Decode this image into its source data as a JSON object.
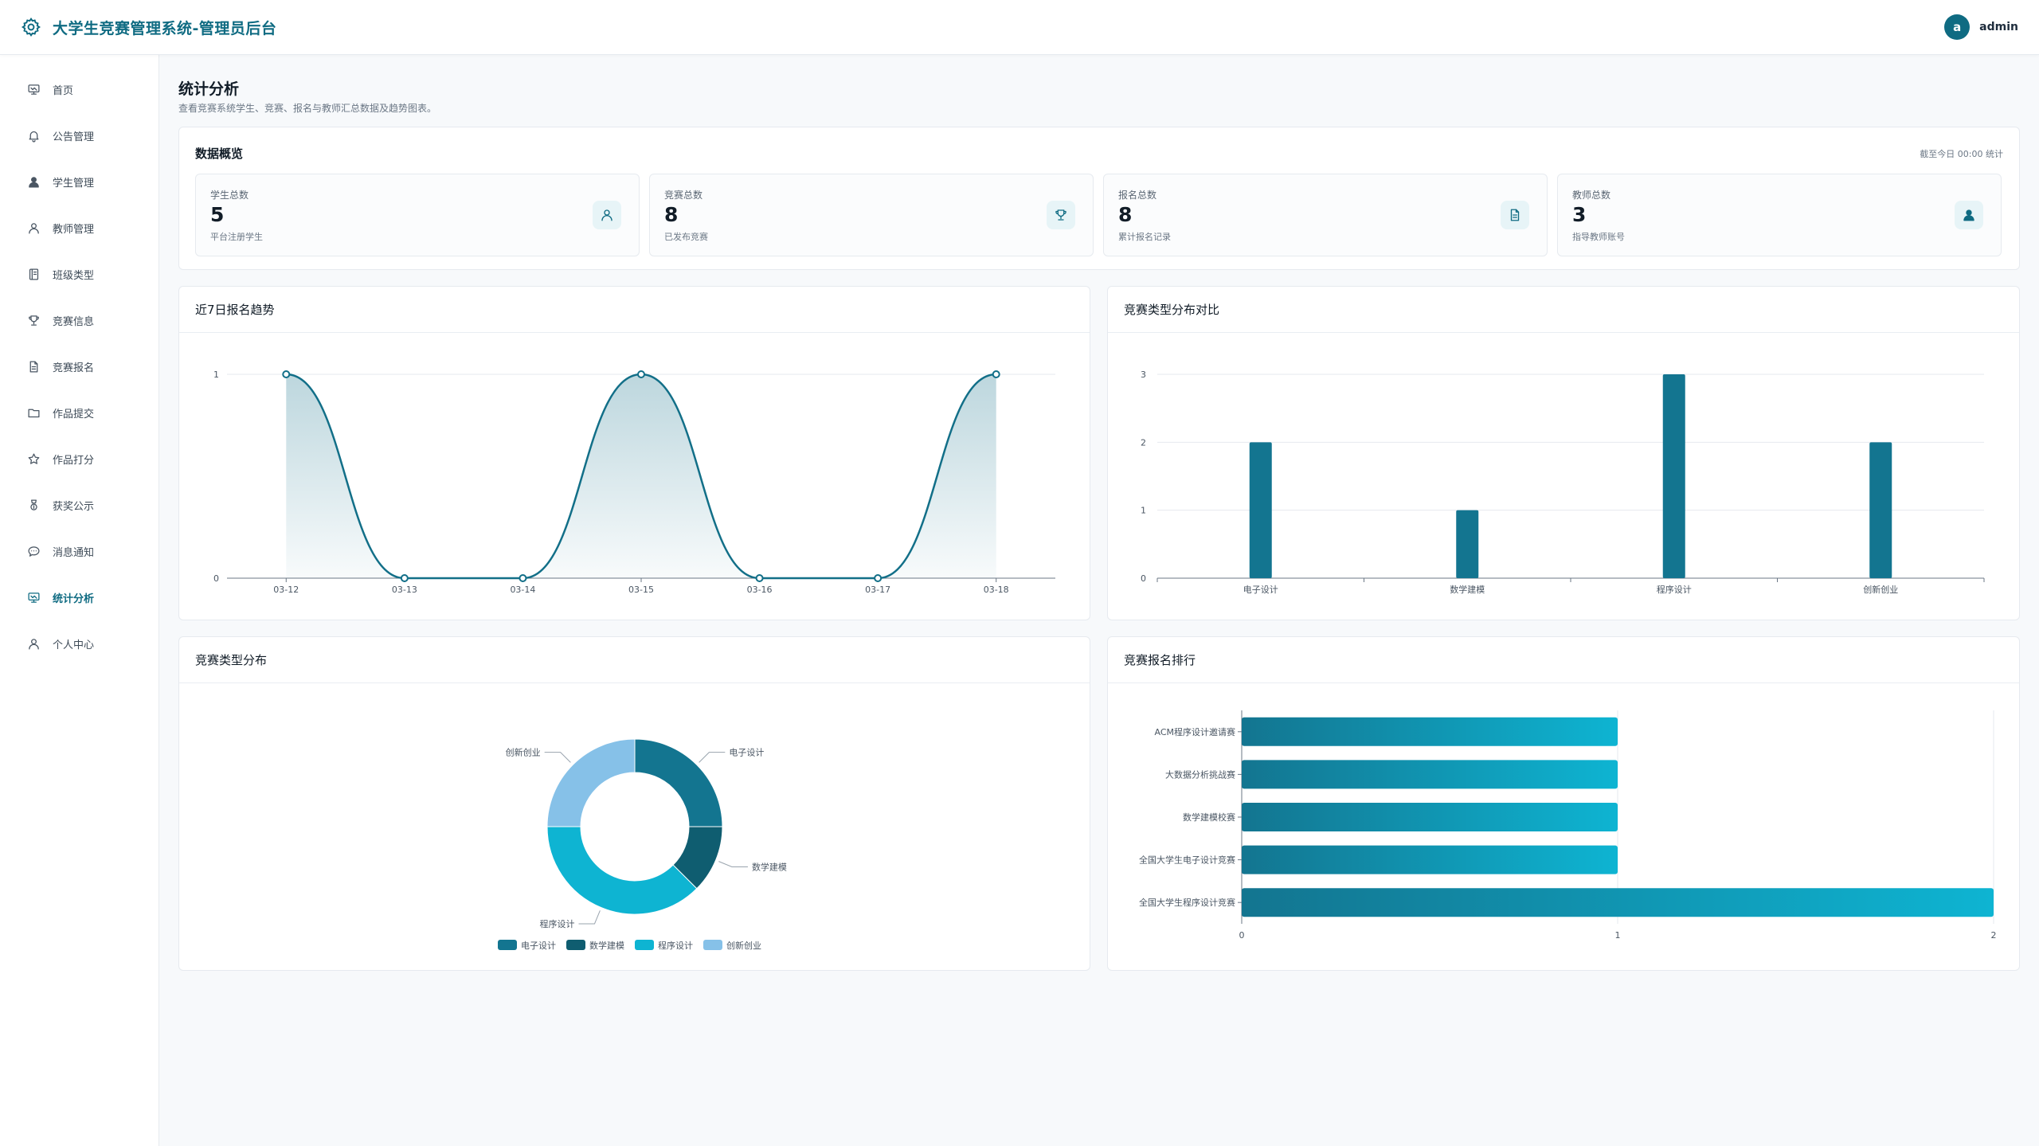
{
  "app": {
    "title": "大学生竞赛管理系统-管理员后台",
    "user": "admin",
    "avatar_letter": "a"
  },
  "colors": {
    "accent": "#0f6b82",
    "bar": "#137590",
    "line": "#126f88",
    "cyan": "#0eb4d2"
  },
  "sidebar": {
    "items": [
      {
        "label": "首页",
        "icon": "monitor-icon",
        "active": false
      },
      {
        "label": "公告管理",
        "icon": "bell-icon",
        "active": false
      },
      {
        "label": "学生管理",
        "icon": "user-filled-icon",
        "active": false
      },
      {
        "label": "教师管理",
        "icon": "user-icon",
        "active": false
      },
      {
        "label": "班级类型",
        "icon": "notebook-icon",
        "active": false
      },
      {
        "label": "竞赛信息",
        "icon": "trophy-icon",
        "active": false
      },
      {
        "label": "竞赛报名",
        "icon": "document-icon",
        "active": false
      },
      {
        "label": "作品提交",
        "icon": "folder-icon",
        "active": false
      },
      {
        "label": "作品打分",
        "icon": "star-icon",
        "active": false
      },
      {
        "label": "获奖公示",
        "icon": "medal-icon",
        "active": false
      },
      {
        "label": "消息通知",
        "icon": "chat-icon",
        "active": false
      },
      {
        "label": "统计分析",
        "icon": "monitor-icon",
        "active": true
      },
      {
        "label": "个人中心",
        "icon": "user-icon",
        "active": false
      }
    ]
  },
  "page": {
    "title": "统计分析",
    "description": "查看竞赛系统学生、竞赛、报名与教师汇总数据及趋势图表。"
  },
  "overview": {
    "title": "数据概览",
    "note": "截至今日 00:00 统计",
    "stats": [
      {
        "label": "学生总数",
        "value": "5",
        "sub": "平台注册学生",
        "icon": "user-icon"
      },
      {
        "label": "竞赛总数",
        "value": "8",
        "sub": "已发布竞赛",
        "icon": "trophy-icon"
      },
      {
        "label": "报名总数",
        "value": "8",
        "sub": "累计报名记录",
        "icon": "document-icon"
      },
      {
        "label": "教师总数",
        "value": "3",
        "sub": "指导教师账号",
        "icon": "user-filled-icon"
      }
    ]
  },
  "charts": {
    "trend_title": "近7日报名趋势",
    "type_bar_title": "竞赛类型分布对比",
    "type_pie_title": "竞赛类型分布",
    "rank_title": "竞赛报名排行"
  },
  "chart_data": [
    {
      "type": "area",
      "title": "近7日报名趋势",
      "x": [
        "03-12",
        "03-13",
        "03-14",
        "03-15",
        "03-16",
        "03-17",
        "03-18"
      ],
      "values": [
        1,
        0,
        0,
        1,
        0,
        0,
        1
      ],
      "ylim": [
        0,
        1
      ],
      "yticks": [
        0,
        1
      ],
      "grid": true
    },
    {
      "type": "bar",
      "title": "竞赛类型分布对比",
      "categories": [
        "电子设计",
        "数学建模",
        "程序设计",
        "创新创业"
      ],
      "values": [
        2,
        1,
        3,
        2
      ],
      "ylim": [
        0,
        3
      ],
      "yticks": [
        0,
        1,
        2,
        3
      ],
      "grid": true
    },
    {
      "type": "pie",
      "title": "竞赛类型分布",
      "categories": [
        "电子设计",
        "数学建模",
        "程序设计",
        "创新创业"
      ],
      "values": [
        2,
        1,
        3,
        2
      ],
      "colors": [
        "#137590",
        "#0f5d70",
        "#0eb4d2",
        "#86c1e8"
      ],
      "legend": "bottom"
    },
    {
      "type": "bar",
      "orientation": "horizontal",
      "title": "竞赛报名排行",
      "categories": [
        "ACM程序设计邀请赛",
        "大数据分析挑战赛",
        "数学建模校赛",
        "全国大学生电子设计竞赛",
        "全国大学生程序设计竞赛"
      ],
      "values": [
        1,
        1,
        1,
        1,
        2
      ],
      "xlim": [
        0,
        2
      ],
      "xticks": [
        0,
        1,
        2
      ],
      "grid": true
    }
  ]
}
